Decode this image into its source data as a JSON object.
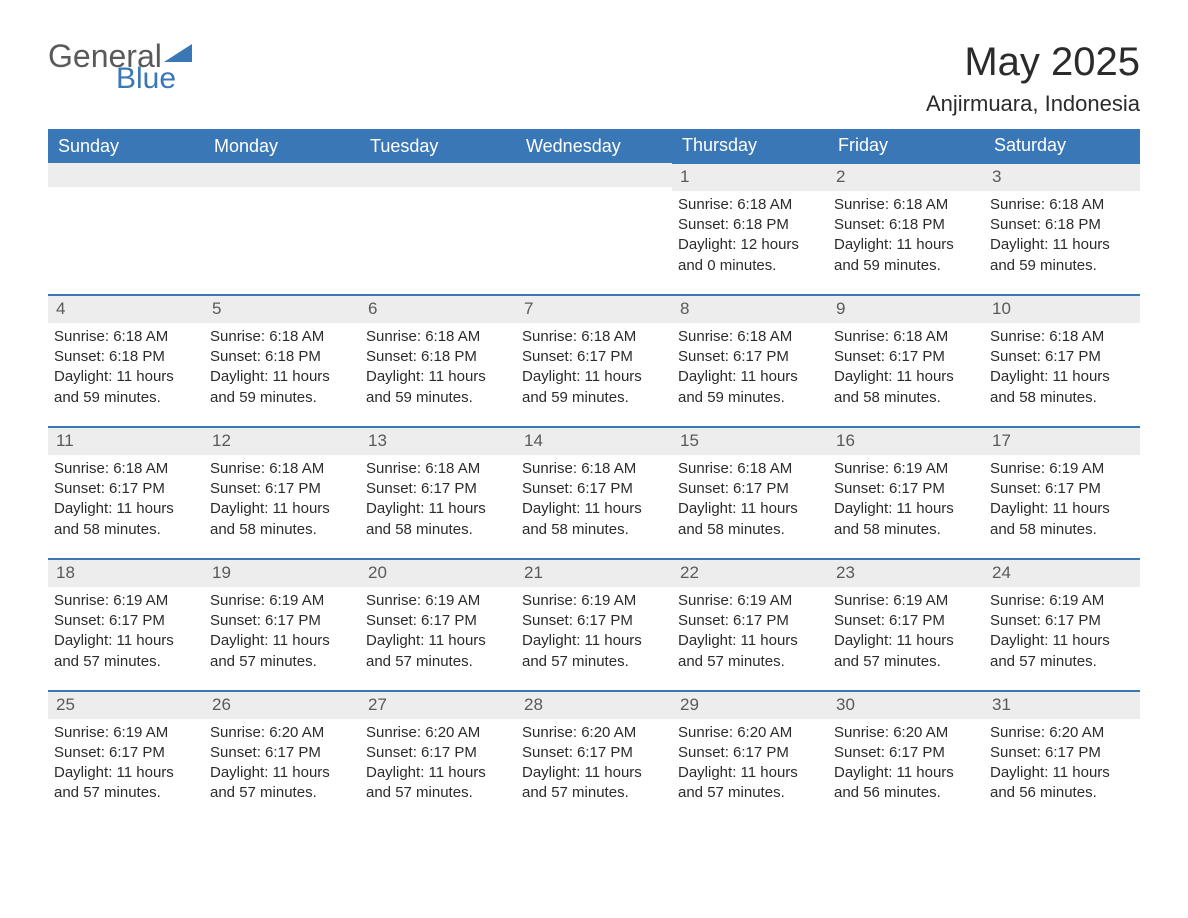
{
  "logo": {
    "text_general": "General",
    "text_blue": "Blue",
    "general_color": "#5a5a5a",
    "blue_color": "#3a77b6",
    "triangle_color": "#3a77b6"
  },
  "title": "May 2025",
  "location": "Anjirmuara, Indonesia",
  "calendar": {
    "header_bg": "#3a77b6",
    "header_fg": "#ffffff",
    "row_border_color": "#3a77b6",
    "daynum_bg": "#ededed",
    "daynum_fg": "#5a5a5a",
    "body_fg": "#2b2b2b",
    "font_size_header": 18,
    "font_size_body": 15,
    "weekdays": [
      "Sunday",
      "Monday",
      "Tuesday",
      "Wednesday",
      "Thursday",
      "Friday",
      "Saturday"
    ],
    "weeks": [
      [
        null,
        null,
        null,
        null,
        {
          "day": "1",
          "sunrise": "6:18 AM",
          "sunset": "6:18 PM",
          "daylight": "12 hours and 0 minutes."
        },
        {
          "day": "2",
          "sunrise": "6:18 AM",
          "sunset": "6:18 PM",
          "daylight": "11 hours and 59 minutes."
        },
        {
          "day": "3",
          "sunrise": "6:18 AM",
          "sunset": "6:18 PM",
          "daylight": "11 hours and 59 minutes."
        }
      ],
      [
        {
          "day": "4",
          "sunrise": "6:18 AM",
          "sunset": "6:18 PM",
          "daylight": "11 hours and 59 minutes."
        },
        {
          "day": "5",
          "sunrise": "6:18 AM",
          "sunset": "6:18 PM",
          "daylight": "11 hours and 59 minutes."
        },
        {
          "day": "6",
          "sunrise": "6:18 AM",
          "sunset": "6:18 PM",
          "daylight": "11 hours and 59 minutes."
        },
        {
          "day": "7",
          "sunrise": "6:18 AM",
          "sunset": "6:17 PM",
          "daylight": "11 hours and 59 minutes."
        },
        {
          "day": "8",
          "sunrise": "6:18 AM",
          "sunset": "6:17 PM",
          "daylight": "11 hours and 59 minutes."
        },
        {
          "day": "9",
          "sunrise": "6:18 AM",
          "sunset": "6:17 PM",
          "daylight": "11 hours and 58 minutes."
        },
        {
          "day": "10",
          "sunrise": "6:18 AM",
          "sunset": "6:17 PM",
          "daylight": "11 hours and 58 minutes."
        }
      ],
      [
        {
          "day": "11",
          "sunrise": "6:18 AM",
          "sunset": "6:17 PM",
          "daylight": "11 hours and 58 minutes."
        },
        {
          "day": "12",
          "sunrise": "6:18 AM",
          "sunset": "6:17 PM",
          "daylight": "11 hours and 58 minutes."
        },
        {
          "day": "13",
          "sunrise": "6:18 AM",
          "sunset": "6:17 PM",
          "daylight": "11 hours and 58 minutes."
        },
        {
          "day": "14",
          "sunrise": "6:18 AM",
          "sunset": "6:17 PM",
          "daylight": "11 hours and 58 minutes."
        },
        {
          "day": "15",
          "sunrise": "6:18 AM",
          "sunset": "6:17 PM",
          "daylight": "11 hours and 58 minutes."
        },
        {
          "day": "16",
          "sunrise": "6:19 AM",
          "sunset": "6:17 PM",
          "daylight": "11 hours and 58 minutes."
        },
        {
          "day": "17",
          "sunrise": "6:19 AM",
          "sunset": "6:17 PM",
          "daylight": "11 hours and 58 minutes."
        }
      ],
      [
        {
          "day": "18",
          "sunrise": "6:19 AM",
          "sunset": "6:17 PM",
          "daylight": "11 hours and 57 minutes."
        },
        {
          "day": "19",
          "sunrise": "6:19 AM",
          "sunset": "6:17 PM",
          "daylight": "11 hours and 57 minutes."
        },
        {
          "day": "20",
          "sunrise": "6:19 AM",
          "sunset": "6:17 PM",
          "daylight": "11 hours and 57 minutes."
        },
        {
          "day": "21",
          "sunrise": "6:19 AM",
          "sunset": "6:17 PM",
          "daylight": "11 hours and 57 minutes."
        },
        {
          "day": "22",
          "sunrise": "6:19 AM",
          "sunset": "6:17 PM",
          "daylight": "11 hours and 57 minutes."
        },
        {
          "day": "23",
          "sunrise": "6:19 AM",
          "sunset": "6:17 PM",
          "daylight": "11 hours and 57 minutes."
        },
        {
          "day": "24",
          "sunrise": "6:19 AM",
          "sunset": "6:17 PM",
          "daylight": "11 hours and 57 minutes."
        }
      ],
      [
        {
          "day": "25",
          "sunrise": "6:19 AM",
          "sunset": "6:17 PM",
          "daylight": "11 hours and 57 minutes."
        },
        {
          "day": "26",
          "sunrise": "6:20 AM",
          "sunset": "6:17 PM",
          "daylight": "11 hours and 57 minutes."
        },
        {
          "day": "27",
          "sunrise": "6:20 AM",
          "sunset": "6:17 PM",
          "daylight": "11 hours and 57 minutes."
        },
        {
          "day": "28",
          "sunrise": "6:20 AM",
          "sunset": "6:17 PM",
          "daylight": "11 hours and 57 minutes."
        },
        {
          "day": "29",
          "sunrise": "6:20 AM",
          "sunset": "6:17 PM",
          "daylight": "11 hours and 57 minutes."
        },
        {
          "day": "30",
          "sunrise": "6:20 AM",
          "sunset": "6:17 PM",
          "daylight": "11 hours and 56 minutes."
        },
        {
          "day": "31",
          "sunrise": "6:20 AM",
          "sunset": "6:17 PM",
          "daylight": "11 hours and 56 minutes."
        }
      ]
    ],
    "labels": {
      "sunrise": "Sunrise: ",
      "sunset": "Sunset: ",
      "daylight": "Daylight: "
    }
  }
}
